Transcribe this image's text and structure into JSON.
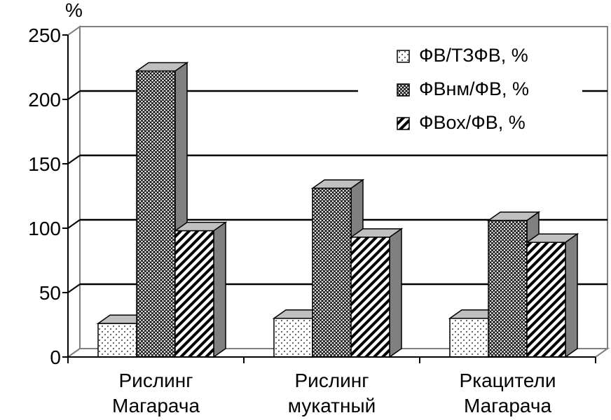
{
  "chart_data": {
    "type": "bar",
    "ylabel": "%",
    "ylim": [
      0,
      250
    ],
    "yticks": [
      "0",
      "50",
      "100",
      "150",
      "200",
      "250"
    ],
    "categories": [
      [
        "Рислинг",
        "Магарача"
      ],
      [
        "Рислинг",
        "мукатный"
      ],
      [
        "Ркацители",
        "Магарача"
      ]
    ],
    "series": [
      {
        "name": "ФВ/ТЗФВ, %",
        "values": [
          26,
          30,
          30
        ],
        "pattern": "dots"
      },
      {
        "name": "ФВнм/ФВ, %",
        "values": [
          222,
          131,
          106
        ],
        "pattern": "crosshatch"
      },
      {
        "name": "ФВох/ФВ, %",
        "values": [
          98,
          93,
          89
        ],
        "pattern": "diagonal"
      }
    ],
    "grid": true,
    "legend_position": "top-right",
    "style": "3d-clustered",
    "colors": {
      "bar_front": "#ffffff",
      "bar_top": "#c0c0c0",
      "bar_side": "#808080",
      "wall": "#ffffff",
      "lines": "#000000",
      "frame": "#808080"
    }
  }
}
